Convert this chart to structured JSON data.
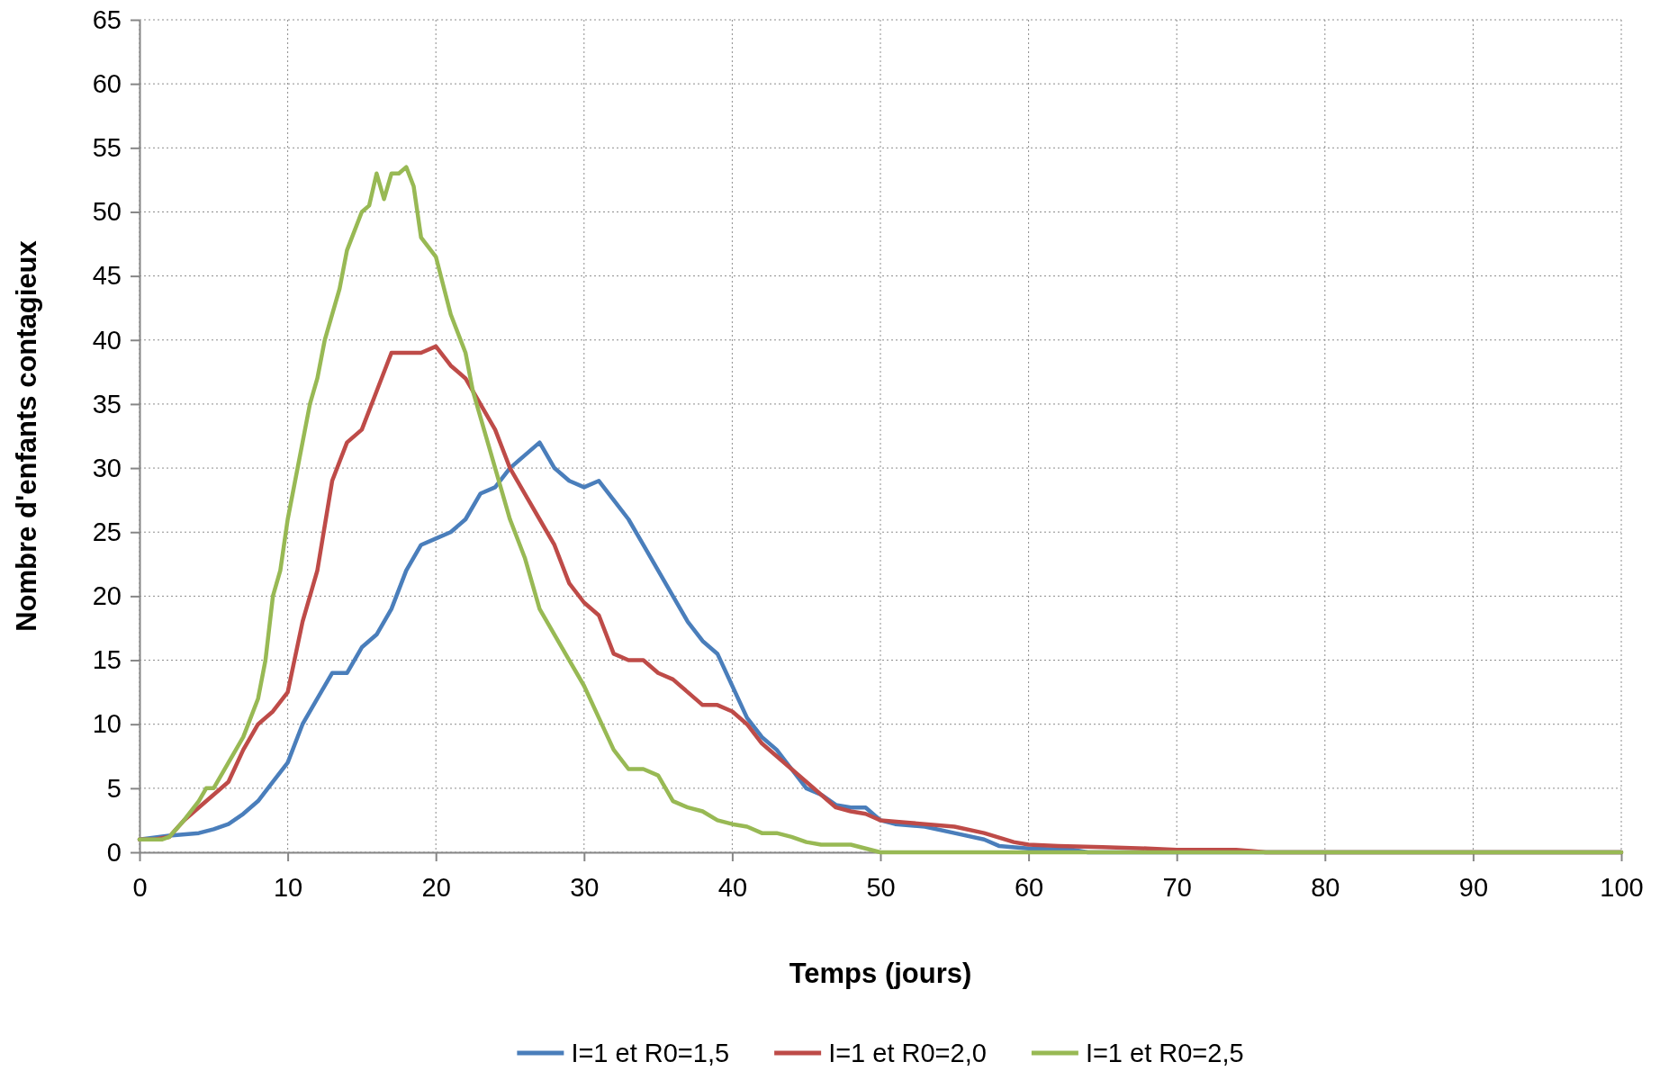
{
  "chart_data": {
    "type": "line",
    "xlabel": "Temps (jours)",
    "ylabel": "Nombre d'enfants contagieux",
    "xlim": [
      0,
      100
    ],
    "ylim": [
      0,
      65
    ],
    "xticks": [
      0,
      10,
      20,
      30,
      40,
      50,
      60,
      70,
      80,
      90,
      100
    ],
    "yticks": [
      0,
      5,
      10,
      15,
      20,
      25,
      30,
      35,
      40,
      45,
      50,
      55,
      60,
      65
    ],
    "grid": true,
    "legend": "bottom",
    "line_style": "solid",
    "marker": "none",
    "series": [
      {
        "name": "I=1 et R0=1,5",
        "color": "#4a7ebb",
        "x": [
          0,
          2,
          4,
          5,
          6,
          7,
          8,
          9,
          10,
          11,
          12,
          13,
          14,
          15,
          16,
          17,
          18,
          19,
          20,
          21,
          22,
          23,
          24,
          25,
          26,
          27,
          28,
          29,
          30,
          31,
          32,
          33,
          34,
          35,
          36,
          37,
          38,
          39,
          40,
          41,
          42,
          43,
          44,
          45,
          46,
          47,
          48,
          49,
          50,
          51,
          53,
          55,
          57,
          58,
          60,
          63,
          64,
          100
        ],
        "values": [
          1,
          1.3,
          1.5,
          1.8,
          2.2,
          3,
          4,
          5.5,
          7,
          10,
          12,
          14,
          14,
          16,
          17,
          19,
          22,
          24,
          24.5,
          25,
          26,
          28,
          28.5,
          30,
          31,
          32,
          30,
          29,
          28.5,
          29,
          27.5,
          26,
          24,
          22,
          20,
          18,
          16.5,
          15.5,
          13,
          10.5,
          9,
          8,
          6.5,
          5,
          4.5,
          3.7,
          3.5,
          3.5,
          2.5,
          2.2,
          2,
          1.5,
          1,
          0.5,
          0.3,
          0.2,
          0,
          0
        ]
      },
      {
        "name": "I=1 et R0=2,0",
        "color": "#be4b48",
        "x": [
          0,
          1,
          2,
          3,
          4,
          5,
          6,
          7,
          8,
          9,
          10,
          11,
          12,
          13,
          14,
          15,
          16,
          17,
          18,
          19,
          20,
          21,
          22,
          23,
          24,
          25,
          26,
          27,
          28,
          29,
          30,
          31,
          32,
          33,
          34,
          35,
          36,
          37,
          38,
          39,
          40,
          41,
          42,
          43,
          44,
          45,
          46,
          47,
          48,
          49,
          50,
          52,
          55,
          57,
          59,
          60,
          62,
          65,
          68,
          70,
          74,
          75,
          76,
          100
        ],
        "values": [
          1,
          1,
          1.2,
          2.5,
          3.5,
          4.5,
          5.5,
          8,
          10,
          11,
          12.5,
          18,
          22,
          29,
          32,
          33,
          36,
          39,
          39,
          39,
          39.5,
          38,
          37,
          35,
          33,
          30,
          28,
          26,
          24,
          21,
          19.5,
          18.5,
          15.5,
          15,
          15,
          14,
          13.5,
          12.5,
          11.5,
          11.5,
          11,
          10,
          8.5,
          7.5,
          6.5,
          5.5,
          4.5,
          3.5,
          3.2,
          3,
          2.5,
          2.3,
          2,
          1.5,
          0.8,
          0.6,
          0.5,
          0.4,
          0.3,
          0.2,
          0.2,
          0.1,
          0,
          0
        ]
      },
      {
        "name": "I=1 et R0=2,5",
        "color": "#98b954",
        "x": [
          0,
          1.5,
          2,
          3,
          4,
          4.5,
          5,
          6,
          7,
          8,
          8.5,
          9,
          9.5,
          10,
          11,
          11.5,
          12,
          12.5,
          13,
          13.5,
          14,
          15,
          15.5,
          16,
          16.5,
          17,
          17.5,
          18,
          18.5,
          19,
          20,
          21,
          22,
          22.5,
          23,
          24,
          24.5,
          25,
          26,
          27,
          28,
          29,
          30,
          31,
          32,
          33,
          34,
          35,
          36,
          37,
          38,
          39,
          40,
          41,
          42,
          43,
          44,
          45,
          46,
          48,
          49,
          50,
          100
        ],
        "values": [
          1,
          1,
          1.2,
          2.5,
          4,
          5,
          5,
          7,
          9,
          12,
          15,
          20,
          22,
          26,
          32,
          35,
          37,
          40,
          42,
          44,
          47,
          50,
          50.5,
          53,
          51,
          53,
          53,
          53.5,
          52,
          48,
          46.5,
          42,
          39,
          36,
          34,
          30,
          28,
          26,
          23,
          19,
          17,
          15,
          13,
          10.5,
          8,
          6.5,
          6.5,
          6,
          4,
          3.5,
          3.2,
          2.5,
          2.2,
          2,
          1.5,
          1.5,
          1.2,
          0.8,
          0.6,
          0.6,
          0.3,
          0,
          0
        ]
      }
    ]
  }
}
